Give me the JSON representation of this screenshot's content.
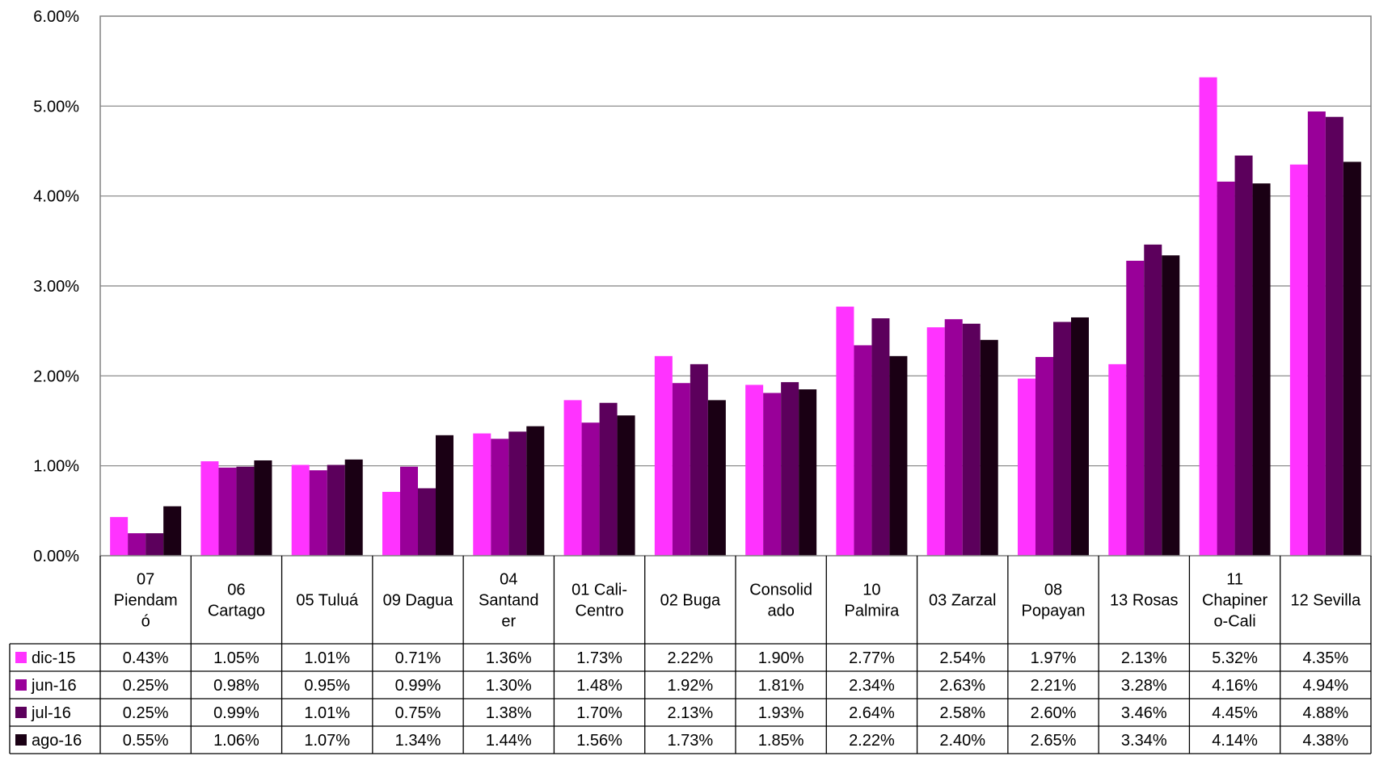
{
  "chart_data": {
    "type": "bar",
    "title": "",
    "xlabel": "",
    "ylabel": "",
    "ylim": [
      0,
      0.06
    ],
    "y_ticks": [
      "0.00%",
      "1.00%",
      "2.00%",
      "3.00%",
      "4.00%",
      "5.00%",
      "6.00%"
    ],
    "y_tick_values": [
      0,
      0.01,
      0.02,
      0.03,
      0.04,
      0.05,
      0.06
    ],
    "grid": true,
    "legend_placement": "data-table-left",
    "categories": [
      [
        "07",
        "Piendam",
        "ó"
      ],
      [
        "06",
        "Cartago"
      ],
      [
        "05 Tuluá"
      ],
      [
        "09 Dagua"
      ],
      [
        "04",
        "Santand",
        "er"
      ],
      [
        "01 Cali-",
        "Centro"
      ],
      [
        "02 Buga"
      ],
      [
        "Consolid",
        "ado"
      ],
      [
        "10",
        "Palmira"
      ],
      [
        "03 Zarzal"
      ],
      [
        "08",
        "Popayan"
      ],
      [
        "13 Rosas"
      ],
      [
        "11",
        "Chapiner",
        "o-Cali"
      ],
      [
        "12 Sevilla"
      ]
    ],
    "series": [
      {
        "name": "dic-15",
        "color": "#FF33FF",
        "values": [
          0.0043,
          0.0105,
          0.0101,
          0.0071,
          0.0136,
          0.0173,
          0.0222,
          0.019,
          0.0277,
          0.0254,
          0.0197,
          0.0213,
          0.0532,
          0.0435
        ],
        "labels": [
          "0.43%",
          "1.05%",
          "1.01%",
          "0.71%",
          "1.36%",
          "1.73%",
          "2.22%",
          "1.90%",
          "2.77%",
          "2.54%",
          "1.97%",
          "2.13%",
          "5.32%",
          "4.35%"
        ]
      },
      {
        "name": "jun-16",
        "color": "#990099",
        "values": [
          0.0025,
          0.0098,
          0.0095,
          0.0099,
          0.013,
          0.0148,
          0.0192,
          0.0181,
          0.0234,
          0.0263,
          0.0221,
          0.0328,
          0.0416,
          0.0494
        ],
        "labels": [
          "0.25%",
          "0.98%",
          "0.95%",
          "0.99%",
          "1.30%",
          "1.48%",
          "1.92%",
          "1.81%",
          "2.34%",
          "2.63%",
          "2.21%",
          "3.28%",
          "4.16%",
          "4.94%"
        ]
      },
      {
        "name": "jul-16",
        "color": "#5C005C",
        "values": [
          0.0025,
          0.0099,
          0.0101,
          0.0075,
          0.0138,
          0.017,
          0.0213,
          0.0193,
          0.0264,
          0.0258,
          0.026,
          0.0346,
          0.0445,
          0.0488
        ],
        "labels": [
          "0.25%",
          "0.99%",
          "1.01%",
          "0.75%",
          "1.38%",
          "1.70%",
          "2.13%",
          "1.93%",
          "2.64%",
          "2.58%",
          "2.60%",
          "3.46%",
          "4.45%",
          "4.88%"
        ]
      },
      {
        "name": "ago-16",
        "color": "#1A0014",
        "values": [
          0.0055,
          0.0106,
          0.0107,
          0.0134,
          0.0144,
          0.0156,
          0.0173,
          0.0185,
          0.0222,
          0.024,
          0.0265,
          0.0334,
          0.0414,
          0.0438
        ],
        "labels": [
          "0.55%",
          "1.06%",
          "1.07%",
          "1.34%",
          "1.44%",
          "1.56%",
          "1.73%",
          "1.85%",
          "2.22%",
          "2.40%",
          "2.65%",
          "3.34%",
          "4.14%",
          "4.38%"
        ]
      }
    ]
  }
}
